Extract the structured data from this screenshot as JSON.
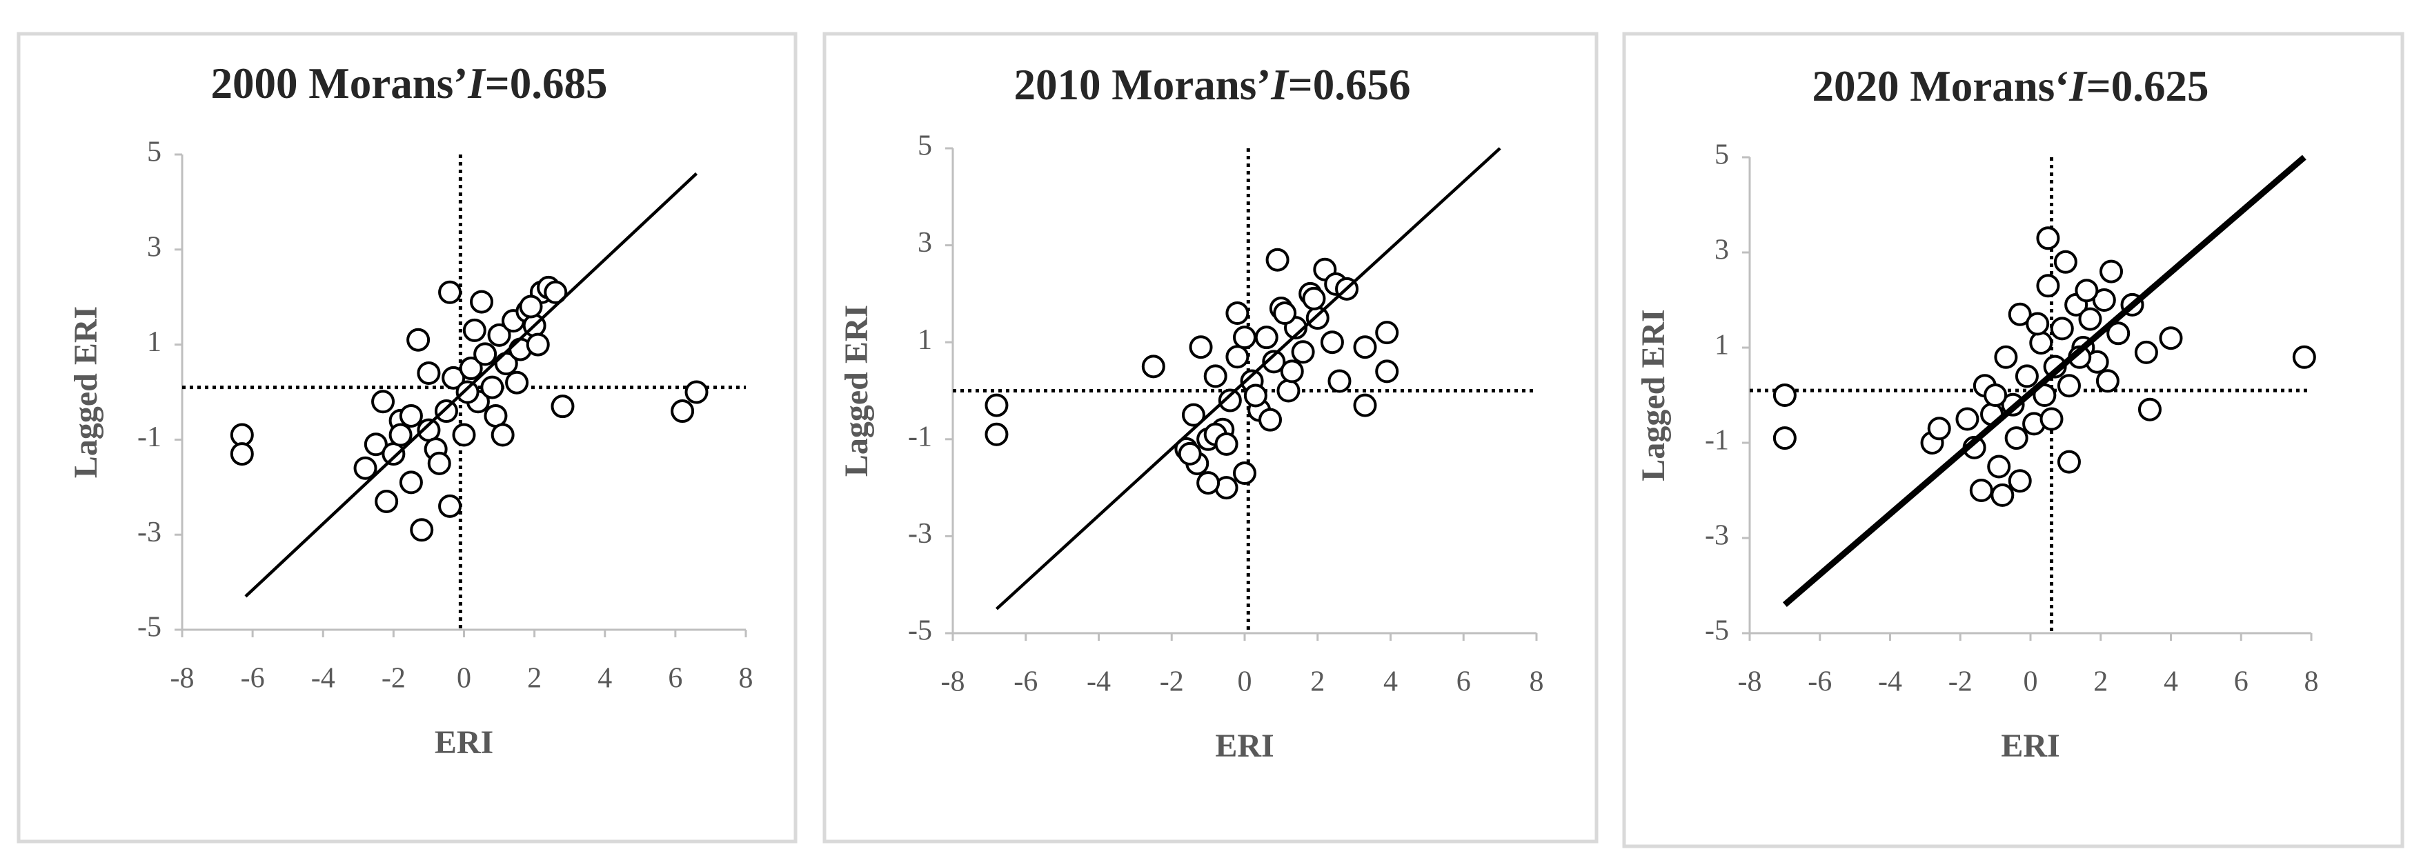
{
  "chart_data": [
    {
      "type": "scatter",
      "title": [
        "2000   Morans’",
        "I",
        "=0.685"
      ],
      "x_label": "ERI",
      "y_label": "Lagged ERI",
      "xlim": [
        -8,
        8
      ],
      "xticks": [
        -8,
        -6,
        -4,
        -2,
        0,
        2,
        4,
        6,
        8
      ],
      "ylim": [
        -5,
        5
      ],
      "yticks": [
        -5,
        -3,
        -1,
        1,
        3,
        5
      ],
      "x_ref_line": -0.1,
      "y_ref_line": 0.1,
      "fit_line": {
        "x": [
          -6.2,
          6.6
        ],
        "y": [
          -4.3,
          4.6
        ]
      },
      "x": [
        -6.3,
        -6.3,
        6.2,
        6.6,
        2.8,
        -1.2,
        -0.4,
        -2.8,
        -2.5,
        -2.2,
        -2.0,
        -1.8,
        -1.5,
        -1.3,
        -1.0,
        -0.8,
        -0.5,
        -0.3,
        0.0,
        0.2,
        0.4,
        0.6,
        0.8,
        1.0,
        1.2,
        1.4,
        1.6,
        1.8,
        2.0,
        2.2,
        2.4,
        2.6,
        -0.4,
        -1.5,
        -2.3,
        0.3,
        0.9,
        1.5,
        -1.0,
        0.5,
        1.9,
        -0.7,
        2.1,
        0.1,
        -1.8,
        1.1
      ],
      "y": [
        -0.9,
        -1.3,
        -0.4,
        0,
        -0.3,
        -2.9,
        -2.4,
        -1.6,
        -1.1,
        -2.3,
        -1.3,
        -0.6,
        -1.9,
        1.1,
        -0.8,
        -1.2,
        -0.4,
        0.3,
        -0.9,
        0.5,
        -0.2,
        0.8,
        0.1,
        1.2,
        0.6,
        1.5,
        0.9,
        1.7,
        1.4,
        2.1,
        2.2,
        2.1,
        2.1,
        -0.5,
        -0.2,
        1.3,
        -0.5,
        0.2,
        0.4,
        1.9,
        1.8,
        -1.5,
        1.0,
        0.0,
        -0.9,
        -0.9
      ]
    },
    {
      "type": "scatter",
      "title": [
        "2010  Morans’",
        "I",
        "=0.656"
      ],
      "x_label": "ERI",
      "y_label": "Lagged ERI",
      "xlim": [
        -8,
        8
      ],
      "xticks": [
        -8,
        -6,
        -4,
        -2,
        0,
        2,
        4,
        6,
        8
      ],
      "ylim": [
        -5,
        5
      ],
      "yticks": [
        -5,
        -3,
        -1,
        1,
        3,
        5
      ],
      "x_ref_line": 0.1,
      "y_ref_line": 0.0,
      "fit_line": {
        "x": [
          -6.8,
          7.0
        ],
        "y": [
          -4.5,
          5.0
        ]
      },
      "x": [
        -6.8,
        -6.8,
        -2.5,
        3.3,
        3.3,
        3.9,
        3.9,
        0.9,
        -0.5,
        -1.0,
        -1.6,
        -1.4,
        -1.2,
        -1.0,
        -0.8,
        -0.6,
        -0.4,
        -0.2,
        0.0,
        0.2,
        0.4,
        0.6,
        0.8,
        1.0,
        1.2,
        1.4,
        1.6,
        1.8,
        2.0,
        2.2,
        2.4,
        2.6,
        -0.2,
        -1.3,
        0.7,
        1.1,
        2.5,
        -0.8,
        0.3,
        1.9,
        -1.5,
        0.0,
        1.3,
        -0.5,
        2.8
      ],
      "y": [
        -0.3,
        -0.9,
        0.5,
        -0.3,
        0.9,
        1.2,
        0.4,
        2.7,
        -2.0,
        -1.9,
        -1.2,
        -0.5,
        0.9,
        -1.0,
        0.3,
        -0.8,
        -0.2,
        1.6,
        -1.7,
        0.2,
        -0.4,
        1.1,
        0.6,
        1.7,
        0.0,
        1.3,
        0.8,
        2.0,
        1.5,
        2.5,
        1.0,
        0.2,
        0.7,
        -1.5,
        -0.6,
        1.6,
        2.2,
        -0.9,
        -0.1,
        1.9,
        -1.3,
        1.1,
        0.4,
        -1.1,
        2.1
      ]
    },
    {
      "type": "scatter",
      "title": [
        "2020  Morans‘",
        "I",
        "=0.625"
      ],
      "x_label": "ERI",
      "y_label": "Lagged ERI",
      "xlim": [
        -8,
        8
      ],
      "xticks": [
        -8,
        -6,
        -4,
        -2,
        0,
        2,
        4,
        6,
        8
      ],
      "ylim": [
        -5,
        5
      ],
      "yticks": [
        -5,
        -3,
        -1,
        1,
        3,
        5
      ],
      "x_ref_line": 0.6,
      "y_ref_line": 0.1,
      "fit_line": {
        "x": [
          -7.0,
          7.8
        ],
        "y": [
          -4.4,
          5.0
        ]
      },
      "x": [
        -7.0,
        -7.0,
        7.8,
        3.4,
        3.3,
        4.0,
        0.5,
        1.0,
        -2.8,
        -0.3,
        1.1,
        -1.4,
        -2.6,
        -1.8,
        -1.6,
        -1.3,
        -1.1,
        -0.9,
        -0.7,
        -0.5,
        -0.3,
        -0.1,
        0.1,
        0.3,
        0.5,
        0.7,
        0.9,
        1.1,
        1.3,
        1.5,
        1.7,
        1.9,
        2.1,
        2.3,
        2.5,
        2.9,
        -0.4,
        0.6,
        1.6,
        -1.0,
        0.2,
        2.2,
        -0.8,
        1.4,
        0.4
      ],
      "y": [
        0,
        -0.9,
        0.8,
        -0.3,
        0.9,
        1.2,
        3.3,
        2.8,
        -1.0,
        -1.8,
        -1.4,
        -2.0,
        -0.7,
        -0.5,
        -1.1,
        0.2,
        -0.4,
        -1.5,
        0.8,
        -0.2,
        1.7,
        0.4,
        -0.6,
        1.1,
        2.3,
        0.6,
        1.4,
        0.2,
        1.9,
        1.0,
        1.6,
        0.7,
        2.0,
        2.6,
        1.3,
        1.9,
        -0.9,
        -0.5,
        2.2,
        0.0,
        1.5,
        0.3,
        -2.1,
        0.8,
        0.0
      ]
    }
  ]
}
